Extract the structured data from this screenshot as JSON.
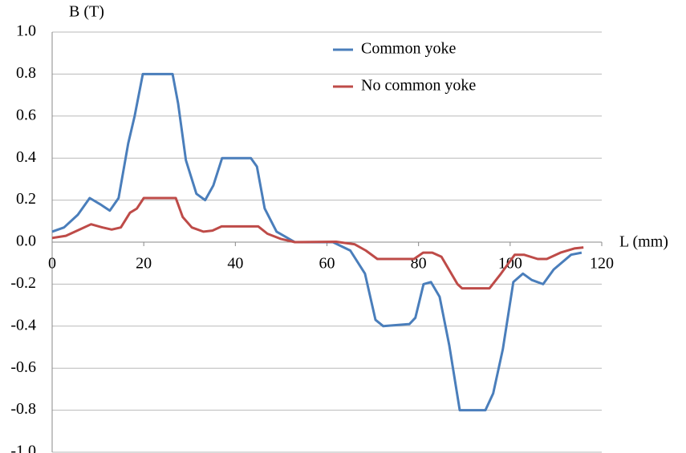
{
  "chart_data": {
    "type": "line",
    "x_label": "L (mm)",
    "y_label": "B (T)",
    "xlim": [
      0,
      120
    ],
    "xticks": [
      0,
      20,
      40,
      60,
      80,
      100,
      120
    ],
    "ylim": [
      -1.0,
      1.0
    ],
    "yticks": [
      {
        "value": 1.0,
        "label": "1.0"
      },
      {
        "value": 0.8,
        "label": "0.8"
      },
      {
        "value": 0.6,
        "label": "0.6"
      },
      {
        "value": 0.4,
        "label": "0.4"
      },
      {
        "value": 0.2,
        "label": "0.2"
      },
      {
        "value": 0.0,
        "label": "0.0"
      },
      {
        "value": -0.2,
        "label": "-0.2"
      },
      {
        "value": -0.4,
        "label": "-0.4"
      },
      {
        "value": -0.6,
        "label": "-0.6"
      },
      {
        "value": -0.8,
        "label": "-0.8"
      },
      {
        "value": -1.0,
        "label": "-1.0"
      }
    ],
    "grid": true,
    "series": [
      {
        "name": "Common yoke",
        "color": "#4a7ebb",
        "x": [
          0,
          2.6,
          5.6,
          8.2,
          10.5,
          12.6,
          14.5,
          16.6,
          18,
          19.8,
          26.3,
          27.5,
          29.2,
          31.5,
          33.4,
          35.2,
          37.1,
          43.4,
          44.7,
          46.4,
          49,
          53,
          61.3,
          65.1,
          68.3,
          70.6,
          72.3,
          78,
          79.3,
          81.1,
          82.7,
          84.6,
          86.7,
          89,
          94.6,
          96.3,
          98.4,
          100.7,
          102.8,
          104.7,
          107.2,
          109.5,
          113.3,
          115.6
        ],
        "values": [
          0.05,
          0.07,
          0.13,
          0.21,
          0.18,
          0.15,
          0.21,
          0.47,
          0.6,
          0.8,
          0.8,
          0.66,
          0.39,
          0.23,
          0.2,
          0.27,
          0.4,
          0.4,
          0.36,
          0.16,
          0.05,
          0,
          0,
          -0.04,
          -0.15,
          -0.37,
          -0.4,
          -0.39,
          -0.36,
          -0.2,
          -0.19,
          -0.26,
          -0.49,
          -0.8,
          -0.8,
          -0.72,
          -0.51,
          -0.19,
          -0.15,
          -0.18,
          -0.2,
          -0.13,
          -0.06,
          -0.05
        ]
      },
      {
        "name": "No common yoke",
        "color": "#be4b48",
        "x": [
          0,
          3,
          6,
          8.5,
          11,
          13,
          15,
          17,
          18.5,
          20,
          27,
          28.5,
          30.5,
          33,
          35,
          37,
          45,
          47,
          50,
          53,
          62,
          66,
          68.5,
          71,
          79,
          81,
          83,
          85,
          88.5,
          89.5,
          95.5,
          98,
          100,
          101,
          103,
          106,
          108,
          111,
          114,
          116
        ],
        "values": [
          0.02,
          0.03,
          0.06,
          0.085,
          0.07,
          0.06,
          0.07,
          0.14,
          0.16,
          0.21,
          0.21,
          0.12,
          0.07,
          0.05,
          0.055,
          0.075,
          0.075,
          0.04,
          0.015,
          0,
          0.002,
          -0.01,
          -0.04,
          -0.08,
          -0.08,
          -0.05,
          -0.05,
          -0.07,
          -0.2,
          -0.22,
          -0.22,
          -0.15,
          -0.09,
          -0.06,
          -0.06,
          -0.08,
          -0.08,
          -0.05,
          -0.03,
          -0.025
        ]
      }
    ]
  }
}
